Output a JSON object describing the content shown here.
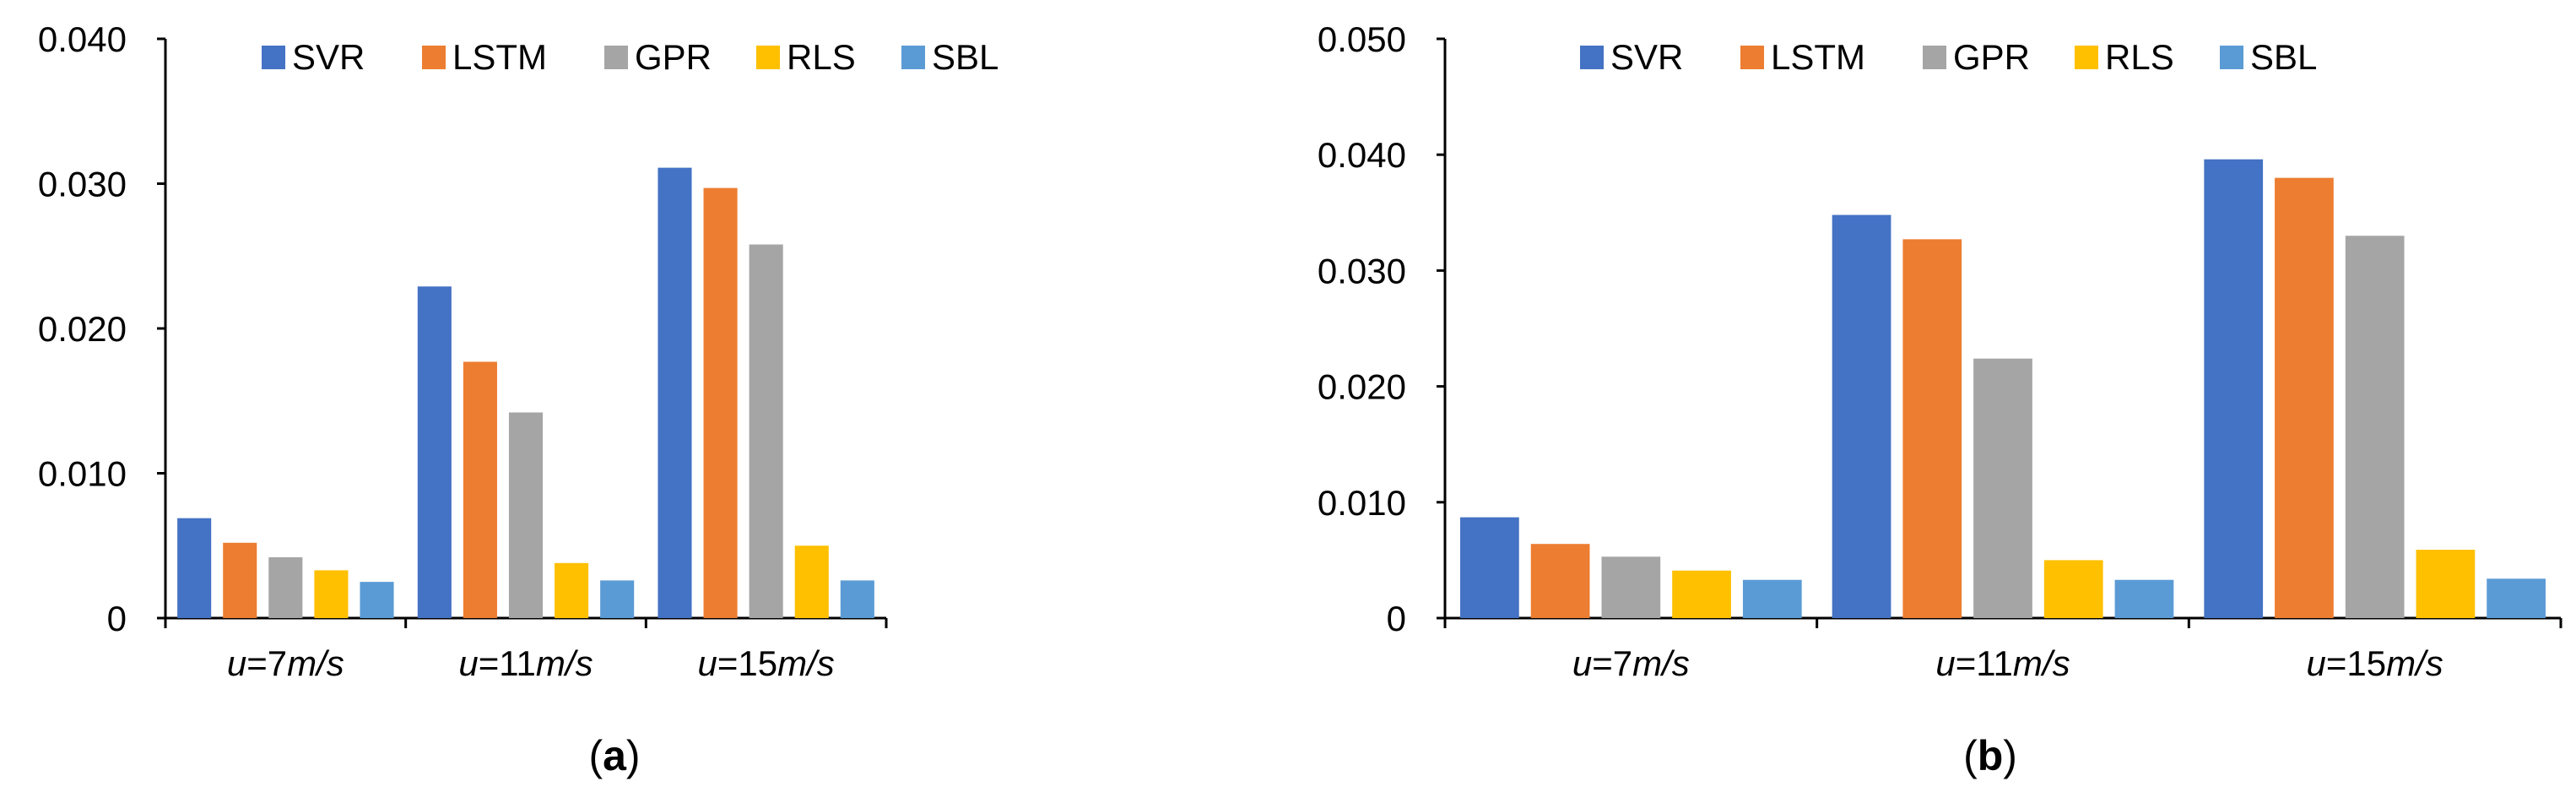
{
  "chart_data": [
    {
      "type": "bar",
      "panel_label": "(a)",
      "panel_letter": "a",
      "categories": [
        "u=7m/s",
        "u=11m/s",
        "u=15m/s"
      ],
      "category_parts": [
        {
          "var": "u",
          "eq": "=7",
          "unit": "m/s"
        },
        {
          "var": "u",
          "eq": "=11",
          "unit": "m/s"
        },
        {
          "var": "u",
          "eq": "=15",
          "unit": "m/s"
        }
      ],
      "series": [
        {
          "name": "SVR",
          "color": "#4472C4",
          "values": [
            0.0069,
            0.0229,
            0.0311
          ]
        },
        {
          "name": "LSTM",
          "color": "#ED7D31",
          "values": [
            0.0052,
            0.0177,
            0.0297
          ]
        },
        {
          "name": "GPR",
          "color": "#A5A5A5",
          "values": [
            0.0042,
            0.0142,
            0.0258
          ]
        },
        {
          "name": "RLS",
          "color": "#FFC000",
          "values": [
            0.0033,
            0.0038,
            0.005
          ]
        },
        {
          "name": "SBL",
          "color": "#5B9BD5",
          "values": [
            0.0025,
            0.0026,
            0.0026
          ]
        }
      ],
      "yticks": [
        0,
        0.01,
        0.02,
        0.03,
        0.04
      ],
      "ytick_labels": [
        "0",
        "0.010",
        "0.020",
        "0.030",
        "0.040"
      ],
      "ylim": [
        0,
        0.04
      ],
      "title": "",
      "xlabel": "",
      "ylabel": "",
      "legend": "top"
    },
    {
      "type": "bar",
      "panel_label": "(b)",
      "panel_letter": "b",
      "categories": [
        "u=7m/s",
        "u=11m/s",
        "u=15m/s"
      ],
      "category_parts": [
        {
          "var": "u",
          "eq": "=7",
          "unit": "m/s"
        },
        {
          "var": "u",
          "eq": "=11",
          "unit": "m/s"
        },
        {
          "var": "u",
          "eq": "=15",
          "unit": "m/s"
        }
      ],
      "series": [
        {
          "name": "SVR",
          "color": "#4472C4",
          "values": [
            0.0087,
            0.0348,
            0.0396
          ]
        },
        {
          "name": "LSTM",
          "color": "#ED7D31",
          "values": [
            0.0064,
            0.0327,
            0.038
          ]
        },
        {
          "name": "GPR",
          "color": "#A5A5A5",
          "values": [
            0.0053,
            0.0224,
            0.033
          ]
        },
        {
          "name": "RLS",
          "color": "#FFC000",
          "values": [
            0.0041,
            0.005,
            0.0059
          ]
        },
        {
          "name": "SBL",
          "color": "#5B9BD5",
          "values": [
            0.0033,
            0.0033,
            0.0034
          ]
        }
      ],
      "yticks": [
        0,
        0.01,
        0.02,
        0.03,
        0.04,
        0.05
      ],
      "ytick_labels": [
        "0",
        "0.010",
        "0.020",
        "0.030",
        "0.040",
        "0.050"
      ],
      "ylim": [
        0,
        0.05
      ],
      "title": "",
      "xlabel": "",
      "ylabel": "",
      "legend": "top"
    }
  ]
}
